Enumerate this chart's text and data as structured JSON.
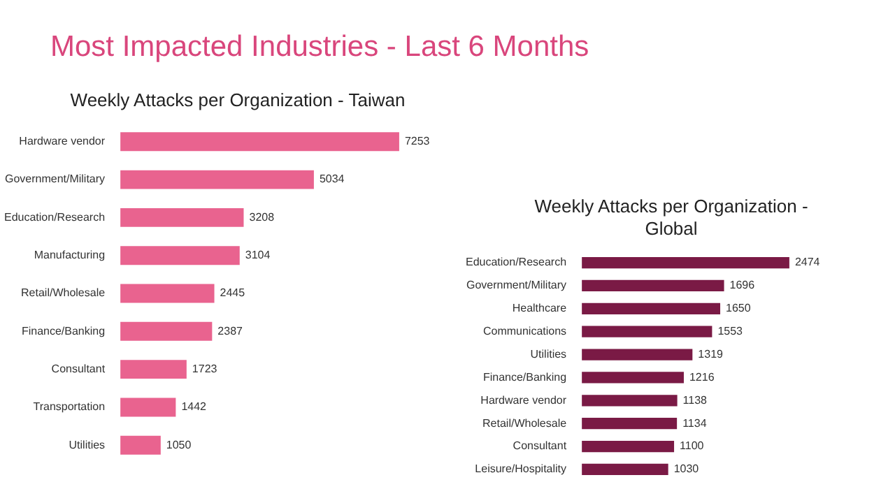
{
  "chart_data": [
    {
      "type": "bar",
      "orientation": "horizontal",
      "title": "Most Impacted Industries - Last 6 Months",
      "subtitle": "Weekly Attacks per Organization - Taiwan",
      "categories": [
        "Hardware vendor",
        "Government/Military",
        "Education/Research",
        "Manufacturing",
        "Retail/Wholesale",
        "Finance/Banking",
        "Consultant",
        "Transportation",
        "Utilities"
      ],
      "values": [
        7253,
        5034,
        3208,
        3104,
        2445,
        2387,
        1723,
        1442,
        1050
      ],
      "color": "#e9638f",
      "data_labels": true,
      "grid": false,
      "legend": false,
      "tick_labels": "y"
    },
    {
      "type": "bar",
      "orientation": "horizontal",
      "subtitle": "Weekly Attacks per Organization - Global",
      "categories": [
        "Education/Research",
        "Government/Military",
        "Healthcare",
        "Communications",
        "Utilities",
        "Finance/Banking",
        "Hardware vendor",
        "Retail/Wholesale",
        "Consultant",
        "Leisure/Hospitality"
      ],
      "values": [
        2474,
        1696,
        1650,
        1553,
        1319,
        1216,
        1138,
        1134,
        1100,
        1030
      ],
      "color": "#7a1a45",
      "data_labels": true,
      "grid": false,
      "legend": false,
      "tick_labels": "y"
    }
  ]
}
